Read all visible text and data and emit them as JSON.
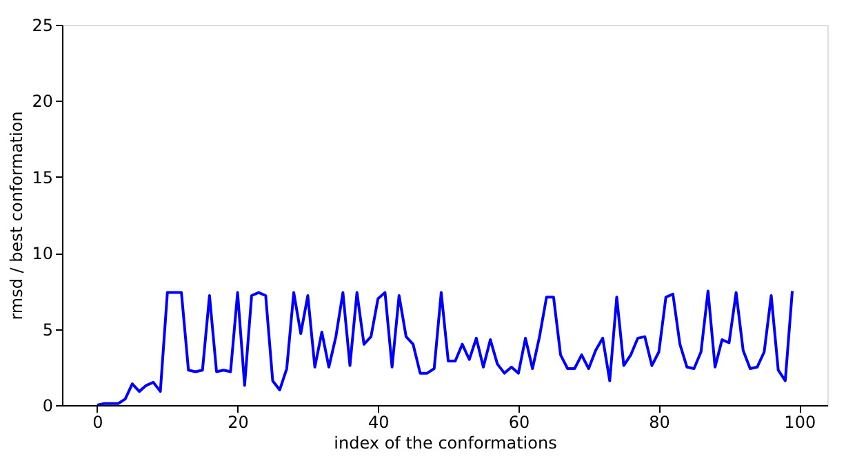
{
  "chart_data": {
    "type": "line",
    "xlabel": "index of the conformations",
    "ylabel": "rmsd / best conformation",
    "x": [
      0,
      1,
      2,
      3,
      4,
      5,
      6,
      7,
      8,
      9,
      10,
      11,
      12,
      13,
      14,
      15,
      16,
      17,
      18,
      19,
      20,
      21,
      22,
      23,
      24,
      25,
      26,
      27,
      28,
      29,
      30,
      31,
      32,
      33,
      34,
      35,
      36,
      37,
      38,
      39,
      40,
      41,
      42,
      43,
      44,
      45,
      46,
      47,
      48,
      49,
      50,
      51,
      52,
      53,
      54,
      55,
      56,
      57,
      58,
      59,
      60,
      61,
      62,
      63,
      64,
      65,
      66,
      67,
      68,
      69,
      70,
      71,
      72,
      73,
      74,
      75,
      76,
      77,
      78,
      79,
      80,
      81,
      82,
      83,
      84,
      85,
      86,
      87,
      88,
      89,
      90,
      91,
      92,
      93,
      94,
      95,
      96,
      97,
      98,
      99
    ],
    "series": [
      {
        "color": "#0000ff",
        "values": [
          0,
          0.1,
          0.1,
          0.1,
          0.4,
          1.4,
          0.9,
          1.3,
          1.5,
          0.9,
          7.4,
          7.4,
          7.4,
          2.3,
          2.2,
          2.3,
          7.2,
          2.2,
          2.3,
          2.2,
          7.4,
          1.3,
          7.2,
          7.4,
          7.2,
          1.6,
          1.0,
          2.4,
          7.4,
          4.7,
          7.2,
          2.5,
          4.8,
          2.5,
          4.5,
          7.4,
          2.6,
          7.4,
          4.0,
          4.5,
          7.0,
          7.4,
          2.5,
          7.2,
          4.5,
          4.0,
          2.1,
          2.1,
          2.4,
          7.4,
          2.9,
          2.9,
          4.0,
          3.0,
          4.4,
          2.5,
          4.3,
          2.7,
          2.1,
          2.5,
          2.1,
          4.4,
          2.4,
          4.5,
          7.1,
          7.1,
          3.3,
          2.4,
          2.4,
          3.3,
          2.4,
          3.6,
          4.4,
          1.6,
          7.1,
          2.6,
          3.3,
          4.4,
          4.5,
          2.6,
          3.5,
          7.1,
          7.3,
          4.0,
          2.5,
          2.4,
          3.5,
          7.5,
          2.5,
          4.3,
          4.1,
          7.4,
          3.6,
          2.4,
          2.5,
          3.5,
          7.2,
          2.3,
          1.6,
          7.5
        ]
      }
    ],
    "xlim": [
      -5,
      104
    ],
    "ylim": [
      0,
      25
    ],
    "xticks": [
      0,
      20,
      40,
      60,
      80,
      100
    ],
    "yticks": [
      0,
      5,
      10,
      15,
      20,
      25
    ],
    "grid": false,
    "legend": false,
    "marker": "none",
    "line_style": "solid"
  }
}
